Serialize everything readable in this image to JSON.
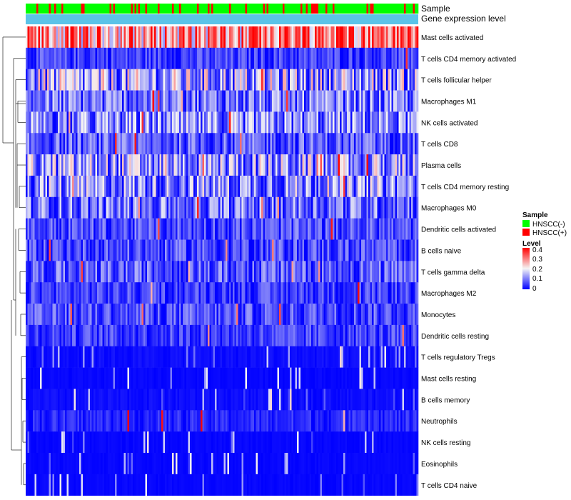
{
  "chart_data": {
    "type": "heatmap",
    "title": "",
    "annotation_rows": [
      {
        "name": "Sample",
        "label": "Sample"
      },
      {
        "name": "Gene expression level",
        "label": "Gene expression level"
      }
    ],
    "rows": [
      "Mast cells activated",
      "T cells CD4 memory activated",
      "T cells follicular helper",
      "Macrophages M1",
      "NK cells activated",
      "T cells CD8",
      "Plasma cells",
      "T cells CD4 memory resting",
      "Macrophages M0",
      "Dendritic cells activated",
      "B cells naive",
      "T cells gamma delta",
      "Macrophages M2",
      "Monocytes",
      "Dendritic cells resting",
      "T cells regulatory  Tregs",
      "Mast cells resting",
      "B cells memory",
      "Neutrophils",
      "NK cells resting",
      "Eosinophils",
      "T cells CD4 naive"
    ],
    "row_mean_levels": [
      0.28,
      0.05,
      0.13,
      0.09,
      0.1,
      0.07,
      0.12,
      0.11,
      0.09,
      0.06,
      0.06,
      0.07,
      0.05,
      0.06,
      0.05,
      0.02,
      0.01,
      0.02,
      0.03,
      0.01,
      0.01,
      0.01
    ],
    "n_columns": 220,
    "legend": {
      "sample": {
        "title": "Sample",
        "entries": [
          {
            "label": "HNSCC(-)",
            "color": "#00ff00"
          },
          {
            "label": "HNSCC(+)",
            "color": "#ff0000"
          }
        ]
      },
      "level": {
        "title": "Level",
        "ticks": [
          "0.4",
          "0.3",
          "0.2",
          "0.1",
          "0"
        ],
        "range": [
          0,
          0.4
        ],
        "colors": {
          "low": "#0000ff",
          "mid": "#f5f5f5",
          "high": "#ff0000"
        }
      }
    },
    "gene_expression_color": "#5bc3e8"
  }
}
